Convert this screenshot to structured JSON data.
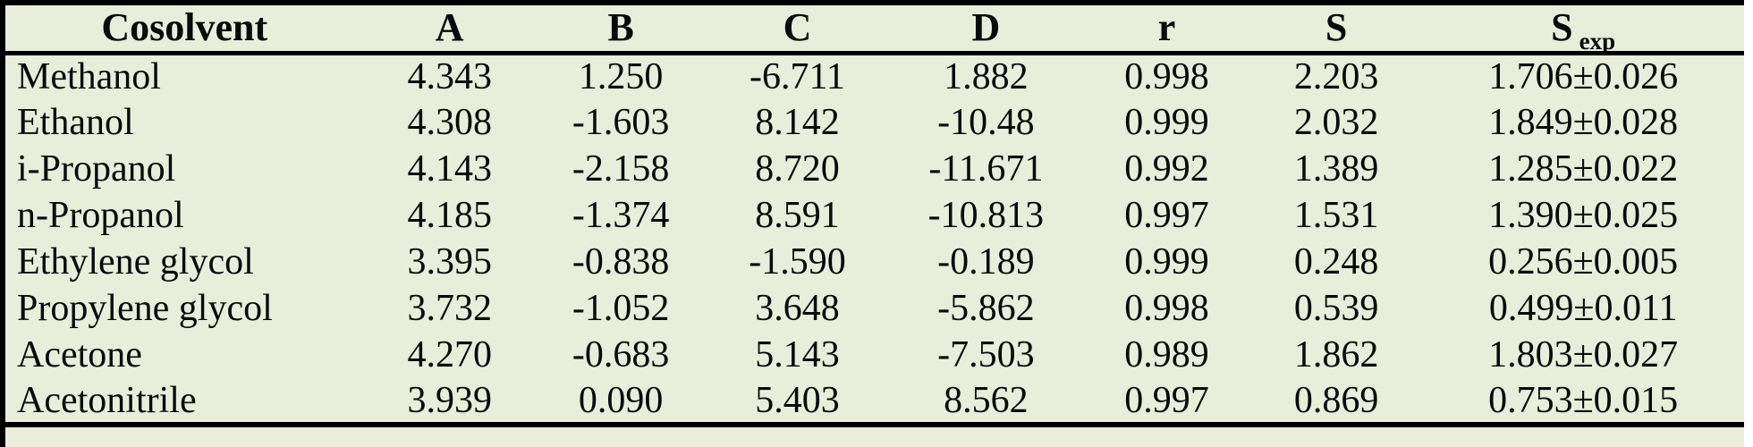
{
  "colors": {
    "background": "#e8eeda",
    "rule": "#000000",
    "text": "#0a0a0a"
  },
  "table": {
    "headers": {
      "cosolvent": "Cosolvent",
      "a": "A",
      "b": "B",
      "c": "C",
      "d": "D",
      "r": "r",
      "s": "S",
      "s_exp_base": "S",
      "s_exp_sub": "exp"
    },
    "rows": [
      [
        "Methanol",
        "4.343",
        "1.250",
        "-6.711",
        "1.882",
        "0.998",
        "2.203",
        "1.706±0.026"
      ],
      [
        "Ethanol",
        "4.308",
        "-1.603",
        "8.142",
        "-10.48",
        "0.999",
        "2.032",
        "1.849±0.028"
      ],
      [
        "i-Propanol",
        "4.143",
        "-2.158",
        "8.720",
        "-11.671",
        "0.992",
        "1.389",
        "1.285±0.022"
      ],
      [
        "n-Propanol",
        "4.185",
        "-1.374",
        "8.591",
        "-10.813",
        "0.997",
        "1.531",
        "1.390±0.025"
      ],
      [
        "Ethylene glycol",
        "3.395",
        "-0.838",
        "-1.590",
        "-0.189",
        "0.999",
        "0.248",
        "0.256±0.005"
      ],
      [
        "Propylene glycol",
        "3.732",
        "-1.052",
        "3.648",
        "-5.862",
        "0.998",
        "0.539",
        "0.499±0.011"
      ],
      [
        "Acetone",
        "4.270",
        "-0.683",
        "5.143",
        "-7.503",
        "0.989",
        "1.862",
        "1.803±0.027"
      ],
      [
        "Acetonitrile",
        "3.939",
        "0.090",
        "5.403",
        "8.562",
        "0.997",
        "0.869",
        "0.753±0.015"
      ]
    ]
  }
}
